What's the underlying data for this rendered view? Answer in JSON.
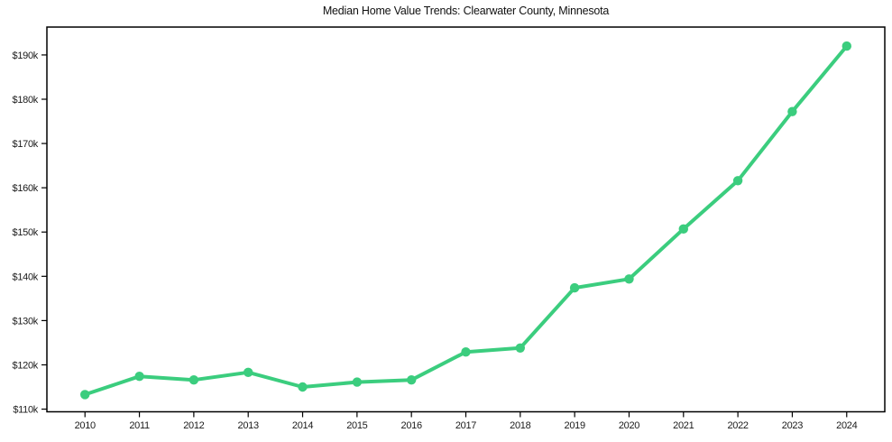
{
  "chart_data": {
    "type": "line",
    "title": "Median Home Value Trends: Clearwater County, Minnesota",
    "xlabel": "",
    "ylabel": "",
    "x": [
      2010,
      2011,
      2012,
      2013,
      2014,
      2015,
      2016,
      2017,
      2018,
      2019,
      2020,
      2021,
      2022,
      2023,
      2024
    ],
    "xtick_labels": [
      "2010",
      "2011",
      "2012",
      "2013",
      "2014",
      "2015",
      "2016",
      "2017",
      "2018",
      "2019",
      "2020",
      "2021",
      "2022",
      "2023",
      "2024"
    ],
    "series": [
      {
        "name": "Median Home Value",
        "values": [
          113300,
          117400,
          116600,
          118300,
          115000,
          116100,
          116600,
          122900,
          123800,
          137400,
          139400,
          150700,
          161600,
          177200,
          192000
        ],
        "color": "#3bcd7e",
        "marker": "circle"
      }
    ],
    "yticks": [
      110000,
      120000,
      130000,
      140000,
      150000,
      160000,
      170000,
      180000,
      190000
    ],
    "ytick_labels": [
      "$110k",
      "$120k",
      "$130k",
      "$140k",
      "$150k",
      "$160k",
      "$170k",
      "$180k",
      "$190k"
    ],
    "ylim": [
      109400,
      196300
    ],
    "xlim": [
      2009.3,
      2024.7
    ],
    "grid": false,
    "legend_position": "none",
    "frame_color": "#000000",
    "background_color": "#ffffff"
  }
}
